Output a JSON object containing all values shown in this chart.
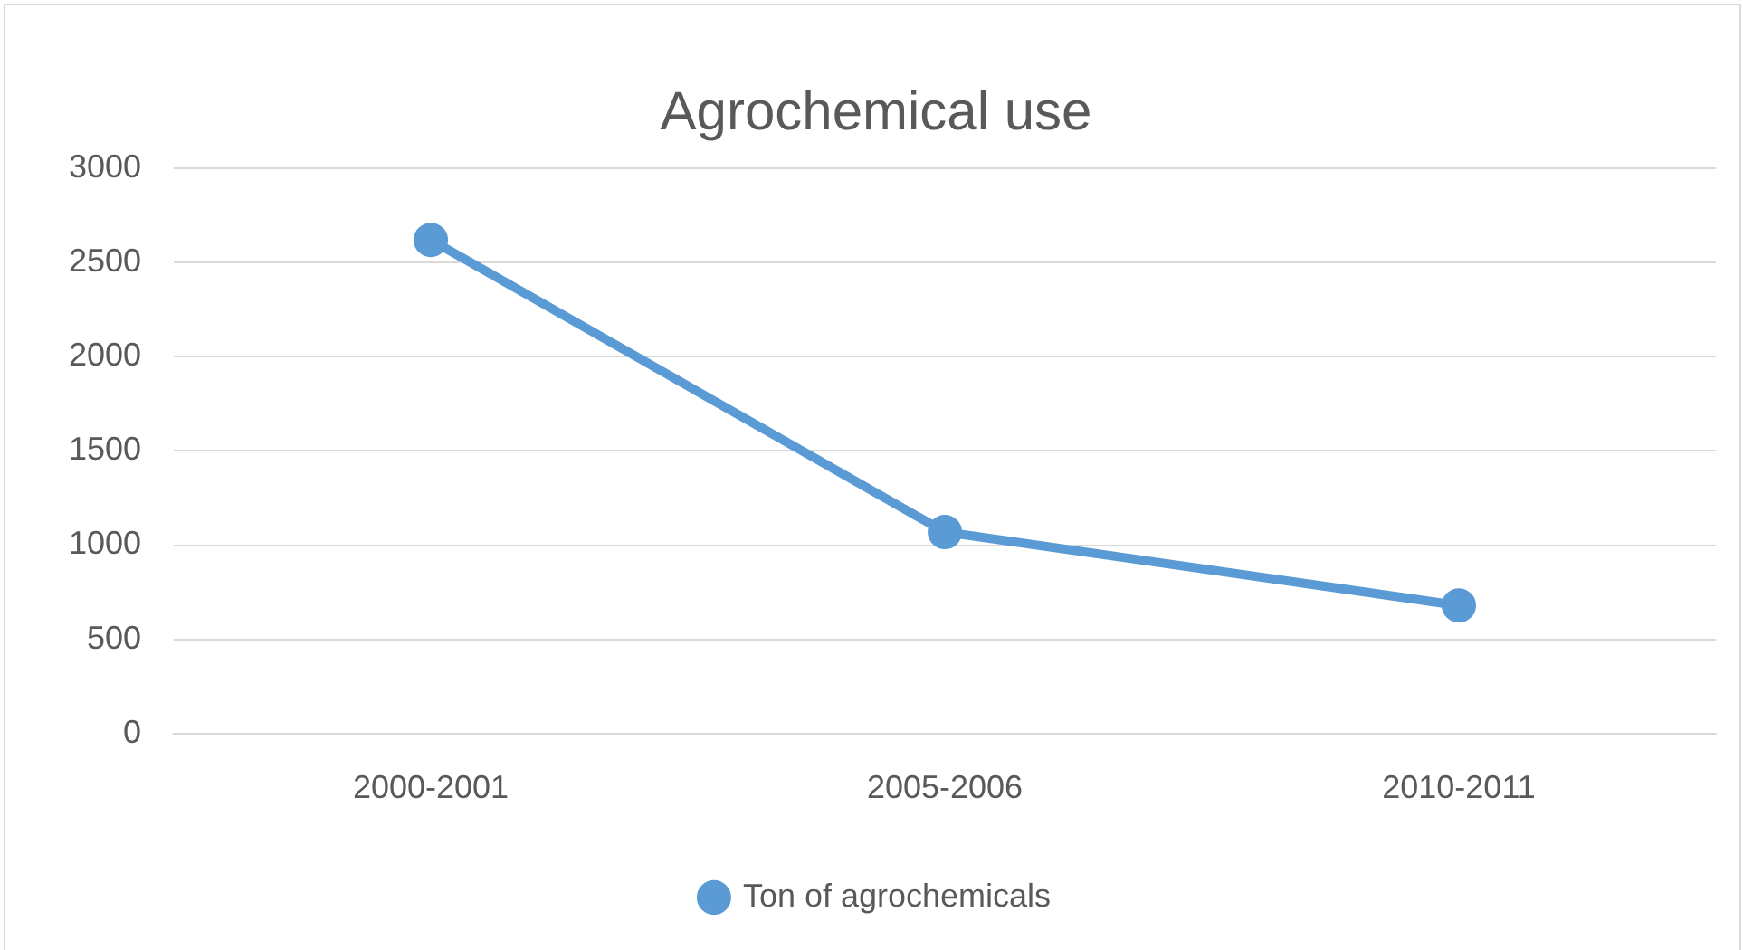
{
  "chart_data": {
    "type": "line",
    "title": "Agrochemical use",
    "categories": [
      "2000-2001",
      "2005-2006",
      "2010-2011"
    ],
    "series": [
      {
        "name": "Ton of agrochemicals",
        "color": "#5b9bd5",
        "values": [
          2620,
          1070,
          680
        ]
      }
    ],
    "ylim": [
      0,
      3000
    ],
    "yticks": [
      0,
      500,
      1000,
      1500,
      2000,
      2500,
      3000
    ],
    "grid": "y",
    "legend": "bottom",
    "marker": "circle",
    "line_style": "solid"
  }
}
